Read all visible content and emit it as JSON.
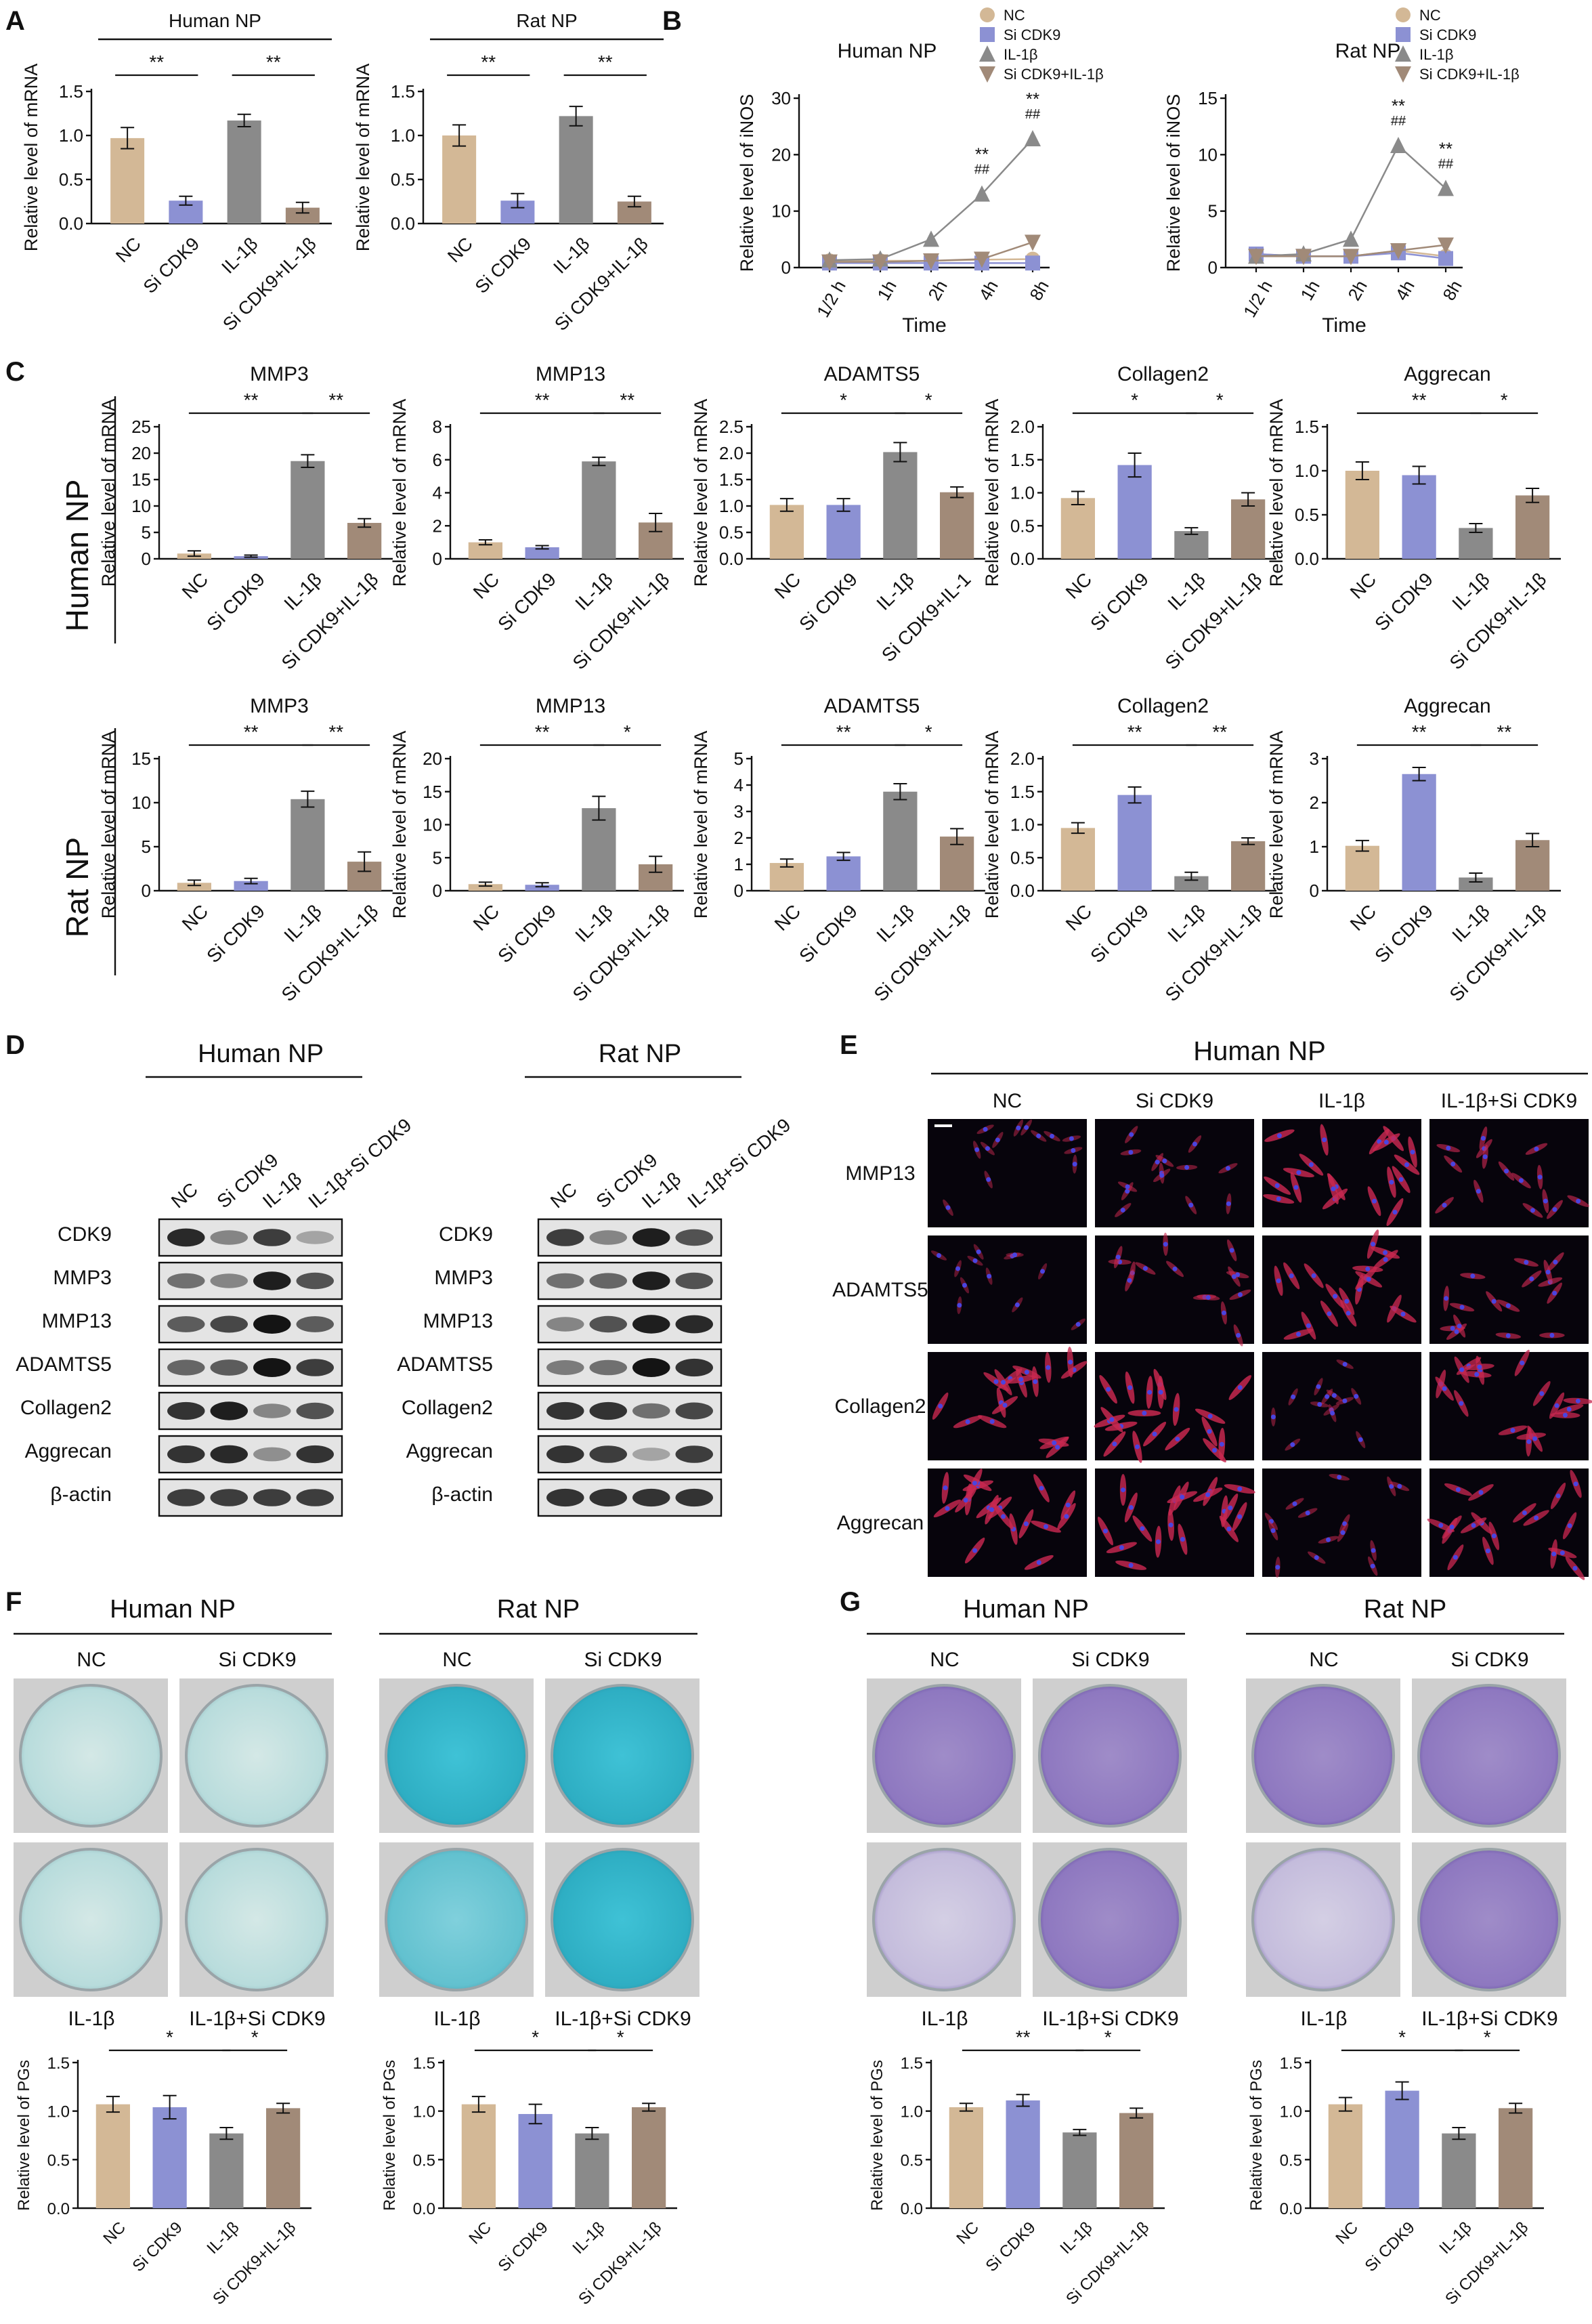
{
  "colors": {
    "NC": "#d3b896",
    "Si CDK9": "#8c91d3",
    "IL-1β": "#8a8a8a",
    "Si CDK9+IL-1β": "#a18a78",
    "alcian_blue": "#34b4c8",
    "toluidine_purple": "#6b55a5",
    "fluorescence_red": "#c8284f",
    "fluorescence_blue": "#3a36c8"
  },
  "panel_letters": [
    "A",
    "B",
    "C",
    "D",
    "E",
    "F",
    "G"
  ],
  "groups": [
    "NC",
    "Si CDK9",
    "IL-1β",
    "Si CDK9+IL-1β"
  ],
  "panelA": [
    {
      "title": "Human NP",
      "ylabel": "Relative level of mRNA",
      "ylim": [
        0,
        1.5
      ],
      "yticks": [
        "0.0",
        "0.5",
        "1.0",
        "1.5"
      ],
      "categories": [
        "NC",
        "Si CDK9",
        "IL-1β",
        "Si CDK9+IL-1β"
      ],
      "values": [
        0.97,
        0.26,
        1.17,
        0.18
      ],
      "errors": [
        0.12,
        0.05,
        0.07,
        0.06
      ],
      "sig": [
        {
          "from": 0,
          "to": 1,
          "label": "**"
        },
        {
          "from": 2,
          "to": 3,
          "label": "**"
        }
      ]
    },
    {
      "title": "Rat NP",
      "ylabel": "Relative level of mRNA",
      "ylim": [
        0,
        1.5
      ],
      "yticks": [
        "0.0",
        "0.5",
        "1.0",
        "1.5"
      ],
      "categories": [
        "NC",
        "Si CDK9",
        "IL-1β",
        "Si CDK9+IL-1β"
      ],
      "values": [
        1.0,
        0.26,
        1.22,
        0.25
      ],
      "errors": [
        0.12,
        0.08,
        0.11,
        0.06
      ],
      "sig": [
        {
          "from": 0,
          "to": 1,
          "label": "**"
        },
        {
          "from": 2,
          "to": 3,
          "label": "**"
        }
      ]
    }
  ],
  "panelB": [
    {
      "title": "Human NP",
      "ylabel": "Relative level of iNOS",
      "xlabel": "Time",
      "ylim": [
        0,
        30
      ],
      "yticks": [
        "0",
        "10",
        "20",
        "30"
      ],
      "xcats": [
        "1/2 h",
        "1h",
        "2h",
        "4h",
        "8h"
      ],
      "series": [
        {
          "name": "NC",
          "values": [
            1.2,
            1.2,
            1.2,
            1.4,
            1.5
          ]
        },
        {
          "name": "Si CDK9",
          "values": [
            0.8,
            0.8,
            0.8,
            0.8,
            0.8
          ]
        },
        {
          "name": "IL-1β",
          "values": [
            1.3,
            1.5,
            5.0,
            13.0,
            22.8
          ]
        },
        {
          "name": "Si CDK9+IL-1β",
          "values": [
            1.0,
            1.0,
            1.2,
            1.5,
            4.5
          ]
        }
      ],
      "annotations": [
        {
          "x": 3,
          "y": 13.0,
          "lines": [
            "**",
            "##"
          ]
        },
        {
          "x": 4,
          "y": 22.8,
          "lines": [
            "**",
            "##"
          ]
        }
      ],
      "legend": [
        "NC",
        "Si CDK9",
        "IL-1β",
        "Si CDK9+IL-1β"
      ]
    },
    {
      "title": "Rat NP",
      "ylabel": "Relative level of iNOS",
      "xlabel": "Time",
      "ylim": [
        0,
        15
      ],
      "yticks": [
        "0",
        "5",
        "10",
        "15"
      ],
      "xcats": [
        "1/2 h",
        "1h",
        "2h",
        "4h",
        "8h"
      ],
      "series": [
        {
          "name": "NC",
          "values": [
            1.2,
            1.0,
            1.0,
            1.5,
            1.0
          ]
        },
        {
          "name": "Si CDK9",
          "values": [
            1.2,
            1.0,
            1.0,
            1.3,
            0.8
          ]
        },
        {
          "name": "IL-1β",
          "values": [
            1.0,
            1.2,
            2.5,
            10.8,
            7.0
          ]
        },
        {
          "name": "Si CDK9+IL-1β",
          "values": [
            1.0,
            1.0,
            1.0,
            1.5,
            2.0
          ]
        }
      ],
      "annotations": [
        {
          "x": 3,
          "y": 10.8,
          "lines": [
            "**",
            "##"
          ]
        },
        {
          "x": 4,
          "y": 7.0,
          "lines": [
            "**",
            "##"
          ]
        }
      ],
      "legend": [
        "NC",
        "Si CDK9",
        "IL-1β",
        "Si CDK9+IL-1β"
      ]
    }
  ],
  "panelC": {
    "row_labels": [
      "Human NP",
      "Rat NP"
    ],
    "rows": [
      [
        {
          "title": "MMP3",
          "ylim": [
            0,
            25
          ],
          "yticks": [
            "0",
            "5",
            "10",
            "15",
            "20",
            "25"
          ],
          "categories": [
            "NC",
            "Si CDK9",
            "IL-1β",
            "Si CDK9+IL-1β"
          ],
          "values": [
            1.0,
            0.5,
            18.5,
            6.8
          ],
          "errors": [
            0.5,
            0.2,
            1.2,
            0.8
          ],
          "sig": [
            {
              "from": 0,
              "to": 2,
              "label": "**"
            },
            {
              "from": 2,
              "to": 3,
              "label": "**"
            }
          ]
        },
        {
          "title": "MMP13",
          "ylim": [
            0,
            8
          ],
          "yticks": [
            "0",
            "2",
            "4",
            "6",
            "8"
          ],
          "categories": [
            "NC",
            "Si CDK9",
            "IL-1β",
            "Si CDK9+IL-1β"
          ],
          "values": [
            1.0,
            0.7,
            5.9,
            2.2
          ],
          "errors": [
            0.15,
            0.1,
            0.25,
            0.55
          ],
          "sig": [
            {
              "from": 0,
              "to": 2,
              "label": "**"
            },
            {
              "from": 2,
              "to": 3,
              "label": "**"
            }
          ]
        },
        {
          "title": "ADAMTS5",
          "ylim": [
            0,
            2.5
          ],
          "yticks": [
            "0.0",
            "0.5",
            "1.0",
            "1.5",
            "2.0",
            "2.5"
          ],
          "categories": [
            "NC",
            "Si CDK9",
            "IL-1β",
            "Si CDK9+IL-1"
          ],
          "values": [
            1.02,
            1.02,
            2.02,
            1.26
          ],
          "errors": [
            0.12,
            0.12,
            0.18,
            0.1
          ],
          "sig": [
            {
              "from": 0,
              "to": 2,
              "label": "*"
            },
            {
              "from": 2,
              "to": 3,
              "label": "*"
            }
          ]
        },
        {
          "title": "Collagen2",
          "ylim": [
            0,
            2.0
          ],
          "yticks": [
            "0.0",
            "0.5",
            "1.0",
            "1.5",
            "2.0"
          ],
          "categories": [
            "NC",
            "Si CDK9",
            "IL-1β",
            "Si CDK9+IL-1β"
          ],
          "values": [
            0.92,
            1.42,
            0.42,
            0.9
          ],
          "errors": [
            0.1,
            0.18,
            0.05,
            0.1
          ],
          "sig": [
            {
              "from": 0,
              "to": 2,
              "label": "*"
            },
            {
              "from": 2,
              "to": 3,
              "label": "*"
            }
          ]
        },
        {
          "title": "Aggrecan",
          "ylim": [
            0,
            1.5
          ],
          "yticks": [
            "0.0",
            "0.5",
            "1.0",
            "1.5"
          ],
          "categories": [
            "NC",
            "Si CDK9",
            "IL-1β",
            "Si CDK9+IL-1β"
          ],
          "values": [
            1.0,
            0.95,
            0.35,
            0.72
          ],
          "errors": [
            0.1,
            0.1,
            0.05,
            0.08
          ],
          "sig": [
            {
              "from": 0,
              "to": 2,
              "label": "**"
            },
            {
              "from": 2,
              "to": 3,
              "label": "*"
            }
          ]
        }
      ],
      [
        {
          "title": "MMP3",
          "ylim": [
            0,
            15
          ],
          "yticks": [
            "0",
            "5",
            "10",
            "15"
          ],
          "categories": [
            "NC",
            "Si CDK9",
            "IL-1β",
            "Si CDK9+IL-1β"
          ],
          "values": [
            0.9,
            1.1,
            10.4,
            3.3
          ],
          "errors": [
            0.3,
            0.3,
            0.9,
            1.1
          ],
          "sig": [
            {
              "from": 0,
              "to": 2,
              "label": "**"
            },
            {
              "from": 2,
              "to": 3,
              "label": "**"
            }
          ]
        },
        {
          "title": "MMP13",
          "ylim": [
            0,
            20
          ],
          "yticks": [
            "0",
            "5",
            "10",
            "15",
            "20"
          ],
          "categories": [
            "NC",
            "Si CDK9",
            "IL-1β",
            "Si CDK9+IL-1β"
          ],
          "values": [
            1.0,
            0.9,
            12.5,
            4.0
          ],
          "errors": [
            0.3,
            0.3,
            1.8,
            1.2
          ],
          "sig": [
            {
              "from": 0,
              "to": 2,
              "label": "**"
            },
            {
              "from": 2,
              "to": 3,
              "label": "*"
            }
          ]
        },
        {
          "title": "ADAMTS5",
          "ylim": [
            0,
            5
          ],
          "yticks": [
            "0",
            "1",
            "2",
            "3",
            "4",
            "5"
          ],
          "categories": [
            "NC",
            "Si CDK9",
            "IL-1β",
            "Si CDK9+IL-1β"
          ],
          "values": [
            1.05,
            1.3,
            3.75,
            2.05
          ],
          "errors": [
            0.15,
            0.15,
            0.3,
            0.3
          ],
          "sig": [
            {
              "from": 0,
              "to": 2,
              "label": "**"
            },
            {
              "from": 2,
              "to": 3,
              "label": "*"
            }
          ]
        },
        {
          "title": "Collagen2",
          "ylim": [
            0,
            2.0
          ],
          "yticks": [
            "0.0",
            "0.5",
            "1.0",
            "1.5",
            "2.0"
          ],
          "categories": [
            "NC",
            "Si CDK9",
            "IL-1β",
            "Si CDK9+IL-1β"
          ],
          "values": [
            0.95,
            1.45,
            0.22,
            0.75
          ],
          "errors": [
            0.08,
            0.12,
            0.06,
            0.05
          ],
          "sig": [
            {
              "from": 0,
              "to": 2,
              "label": "**"
            },
            {
              "from": 2,
              "to": 3,
              "label": "**"
            }
          ]
        },
        {
          "title": "Aggrecan",
          "ylim": [
            0,
            3
          ],
          "yticks": [
            "0",
            "1",
            "2",
            "3"
          ],
          "categories": [
            "NC",
            "Si CDK9",
            "IL-1β",
            "Si CDK9+IL-1β"
          ],
          "values": [
            1.02,
            2.65,
            0.3,
            1.15
          ],
          "errors": [
            0.12,
            0.15,
            0.1,
            0.15
          ],
          "sig": [
            {
              "from": 0,
              "to": 2,
              "label": "**"
            },
            {
              "from": 2,
              "to": 3,
              "label": "**"
            }
          ]
        }
      ]
    ],
    "ylabel": "Relative level of mRNA"
  },
  "panelD": {
    "blots": [
      {
        "title": "Human NP",
        "lanes": [
          "NC",
          "Si CDK9",
          "IL-1β",
          "IL-1β+Si CDK9"
        ],
        "proteins": [
          "CDK9",
          "MMP3",
          "MMP13",
          "ADAMTS5",
          "Collagen2",
          "Aggrecan",
          "β-actin"
        ],
        "intensity": [
          [
            0.9,
            0.45,
            0.8,
            0.3
          ],
          [
            0.55,
            0.45,
            0.95,
            0.7
          ],
          [
            0.65,
            0.75,
            1.0,
            0.65
          ],
          [
            0.6,
            0.65,
            1.0,
            0.8
          ],
          [
            0.85,
            0.95,
            0.45,
            0.7
          ],
          [
            0.85,
            0.9,
            0.4,
            0.85
          ],
          [
            0.8,
            0.8,
            0.8,
            0.8
          ]
        ]
      },
      {
        "title": "Rat NP",
        "lanes": [
          "NC",
          "Si CDK9",
          "IL-1β",
          "IL-1β+Si CDK9"
        ],
        "proteins": [
          "CDK9",
          "MMP3",
          "MMP13",
          "ADAMTS5",
          "Collagen2",
          "Aggrecan",
          "β-actin"
        ],
        "intensity": [
          [
            0.8,
            0.45,
            0.95,
            0.7
          ],
          [
            0.55,
            0.6,
            0.95,
            0.7
          ],
          [
            0.45,
            0.7,
            0.95,
            0.9
          ],
          [
            0.5,
            0.55,
            1.0,
            0.85
          ],
          [
            0.85,
            0.85,
            0.55,
            0.75
          ],
          [
            0.85,
            0.8,
            0.3,
            0.8
          ],
          [
            0.85,
            0.85,
            0.85,
            0.85
          ]
        ]
      }
    ]
  },
  "panelE": {
    "title": "Human NP",
    "columns": [
      "NC",
      "Si CDK9",
      "IL-1β",
      "IL-1β+Si CDK9"
    ],
    "rows": [
      "MMP13",
      "ADAMTS5",
      "Collagen2",
      "Aggrecan"
    ],
    "red_level": [
      [
        0.25,
        0.35,
        0.85,
        0.5
      ],
      [
        0.2,
        0.45,
        0.8,
        0.55
      ],
      [
        0.8,
        0.9,
        0.25,
        0.75
      ],
      [
        0.85,
        0.85,
        0.35,
        0.75
      ]
    ]
  },
  "panelF": [
    {
      "title": "Human NP",
      "top_labels": [
        "NC",
        "Si CDK9"
      ],
      "bottom_labels": [
        "IL-1β",
        "IL-1β+Si CDK9"
      ],
      "stain_level": [
        0.35,
        0.38,
        0.28,
        0.33
      ],
      "chart": {
        "ylabel": "Relative level of PGs",
        "ylim": [
          0,
          1.5
        ],
        "yticks": [
          "0.0",
          "0.5",
          "1.0",
          "1.5"
        ],
        "categories": [
          "NC",
          "Si CDK9",
          "IL-1β",
          "Si CDK9+IL-1β"
        ],
        "values": [
          1.07,
          1.04,
          0.77,
          1.03
        ],
        "errors": [
          0.08,
          0.12,
          0.06,
          0.05
        ],
        "sig": [
          {
            "from": 0,
            "to": 2,
            "label": "*"
          },
          {
            "from": 2,
            "to": 3,
            "label": "*"
          }
        ]
      }
    },
    {
      "title": "Rat NP",
      "top_labels": [
        "NC",
        "Si CDK9"
      ],
      "bottom_labels": [
        "IL-1β",
        "IL-1β+Si CDK9"
      ],
      "stain_level": [
        0.85,
        0.8,
        0.55,
        0.8
      ],
      "chart": {
        "ylabel": "Relative level of PGs",
        "ylim": [
          0,
          1.5
        ],
        "yticks": [
          "0.0",
          "0.5",
          "1.0",
          "1.5"
        ],
        "categories": [
          "NC",
          "Si CDK9",
          "IL-1β",
          "Si CDK9+IL-1β"
        ],
        "values": [
          1.07,
          0.97,
          0.77,
          1.04
        ],
        "errors": [
          0.08,
          0.1,
          0.06,
          0.04
        ],
        "sig": [
          {
            "from": 0,
            "to": 2,
            "label": "*"
          },
          {
            "from": 2,
            "to": 3,
            "label": "*"
          }
        ]
      }
    }
  ],
  "panelG": [
    {
      "title": "Human NP",
      "top_labels": [
        "NC",
        "Si CDK9"
      ],
      "bottom_labels": [
        "IL-1β",
        "IL-1β+Si CDK9"
      ],
      "stain_level": [
        0.55,
        0.6,
        0.25,
        0.6
      ],
      "chart": {
        "ylabel": "Relative level of PGs",
        "ylim": [
          0,
          1.5
        ],
        "yticks": [
          "0.0",
          "0.5",
          "1.0",
          "1.5"
        ],
        "categories": [
          "NC",
          "Si CDK9",
          "IL-1β",
          "Si CDK9+IL-1β"
        ],
        "values": [
          1.04,
          1.11,
          0.78,
          0.98
        ],
        "errors": [
          0.04,
          0.06,
          0.03,
          0.05
        ],
        "sig": [
          {
            "from": 0,
            "to": 2,
            "label": "**"
          },
          {
            "from": 2,
            "to": 3,
            "label": "*"
          }
        ]
      }
    },
    {
      "title": "Rat NP",
      "top_labels": [
        "NC",
        "Si CDK9"
      ],
      "bottom_labels": [
        "IL-1β",
        "IL-1β+Si CDK9"
      ],
      "stain_level": [
        0.6,
        0.75,
        0.35,
        0.5
      ],
      "chart": {
        "ylabel": "Relative level of PGs",
        "ylim": [
          0,
          1.5
        ],
        "yticks": [
          "0.0",
          "0.5",
          "1.0",
          "1.5"
        ],
        "categories": [
          "NC",
          "Si CDK9",
          "IL-1β",
          "Si CDK9+IL-1β"
        ],
        "values": [
          1.07,
          1.21,
          0.77,
          1.03
        ],
        "errors": [
          0.07,
          0.09,
          0.06,
          0.05
        ],
        "sig": [
          {
            "from": 0,
            "to": 2,
            "label": "*"
          },
          {
            "from": 2,
            "to": 3,
            "label": "*"
          }
        ]
      }
    }
  ]
}
